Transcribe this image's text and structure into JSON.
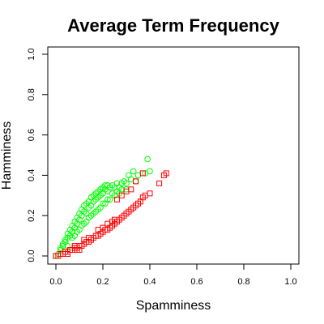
{
  "chart_data": {
    "type": "scatter",
    "title": "Average Term Frequency",
    "xlabel": "Spamminess",
    "ylabel": "Hamminess",
    "xlim": [
      0,
      1
    ],
    "ylim": [
      0,
      1
    ],
    "x_ticks": [
      "0.0",
      "0.2",
      "0.4",
      "0.6",
      "0.8",
      "1.0"
    ],
    "y_ticks": [
      "0.0",
      "0.2",
      "0.4",
      "0.6",
      "0.8",
      "1.0"
    ],
    "grid": false,
    "legend": "none",
    "series": [
      {
        "marker": "circle",
        "color": "#00ff00",
        "points": [
          [
            0.0,
            0.0
          ],
          [
            0.01,
            0.01
          ],
          [
            0.02,
            0.03
          ],
          [
            0.02,
            0.04
          ],
          [
            0.03,
            0.05
          ],
          [
            0.03,
            0.06
          ],
          [
            0.04,
            0.07
          ],
          [
            0.04,
            0.08
          ],
          [
            0.05,
            0.09
          ],
          [
            0.05,
            0.11
          ],
          [
            0.06,
            0.1
          ],
          [
            0.06,
            0.13
          ],
          [
            0.07,
            0.12
          ],
          [
            0.07,
            0.15
          ],
          [
            0.08,
            0.14
          ],
          [
            0.08,
            0.17
          ],
          [
            0.09,
            0.16
          ],
          [
            0.09,
            0.19
          ],
          [
            0.1,
            0.18
          ],
          [
            0.1,
            0.21
          ],
          [
            0.11,
            0.2
          ],
          [
            0.11,
            0.23
          ],
          [
            0.12,
            0.22
          ],
          [
            0.12,
            0.25
          ],
          [
            0.13,
            0.21
          ],
          [
            0.13,
            0.26
          ],
          [
            0.14,
            0.24
          ],
          [
            0.14,
            0.27
          ],
          [
            0.15,
            0.25
          ],
          [
            0.15,
            0.29
          ],
          [
            0.16,
            0.27
          ],
          [
            0.16,
            0.3
          ],
          [
            0.17,
            0.28
          ],
          [
            0.17,
            0.31
          ],
          [
            0.18,
            0.29
          ],
          [
            0.18,
            0.32
          ],
          [
            0.19,
            0.3
          ],
          [
            0.19,
            0.33
          ],
          [
            0.2,
            0.31
          ],
          [
            0.2,
            0.34
          ],
          [
            0.21,
            0.33
          ],
          [
            0.21,
            0.35
          ],
          [
            0.22,
            0.32
          ],
          [
            0.22,
            0.35
          ],
          [
            0.23,
            0.34
          ],
          [
            0.24,
            0.35
          ],
          [
            0.25,
            0.34
          ],
          [
            0.26,
            0.36
          ],
          [
            0.27,
            0.34
          ],
          [
            0.28,
            0.36
          ],
          [
            0.29,
            0.37
          ],
          [
            0.3,
            0.36
          ],
          [
            0.31,
            0.4
          ],
          [
            0.32,
            0.38
          ],
          [
            0.33,
            0.42
          ],
          [
            0.34,
            0.37
          ],
          [
            0.35,
            0.4
          ],
          [
            0.38,
            0.41
          ],
          [
            0.39,
            0.48
          ],
          [
            0.4,
            0.42
          ],
          [
            0.05,
            0.05
          ],
          [
            0.07,
            0.09
          ],
          [
            0.09,
            0.12
          ],
          [
            0.11,
            0.15
          ],
          [
            0.13,
            0.17
          ],
          [
            0.15,
            0.2
          ],
          [
            0.17,
            0.22
          ],
          [
            0.19,
            0.24
          ],
          [
            0.21,
            0.26
          ],
          [
            0.23,
            0.28
          ],
          [
            0.25,
            0.3
          ],
          [
            0.27,
            0.31
          ],
          [
            0.08,
            0.1
          ],
          [
            0.1,
            0.13
          ],
          [
            0.12,
            0.16
          ],
          [
            0.14,
            0.19
          ],
          [
            0.16,
            0.21
          ],
          [
            0.18,
            0.23
          ],
          [
            0.2,
            0.26
          ],
          [
            0.22,
            0.28
          ],
          [
            0.24,
            0.31
          ],
          [
            0.26,
            0.32
          ],
          [
            0.28,
            0.33
          ],
          [
            0.3,
            0.33
          ]
        ]
      },
      {
        "marker": "square",
        "color": "#ff0000",
        "points": [
          [
            0.0,
            0.0
          ],
          [
            0.01,
            0.0
          ],
          [
            0.02,
            0.01
          ],
          [
            0.03,
            0.01
          ],
          [
            0.04,
            0.02
          ],
          [
            0.05,
            0.02
          ],
          [
            0.06,
            0.03
          ],
          [
            0.07,
            0.03
          ],
          [
            0.08,
            0.04
          ],
          [
            0.09,
            0.04
          ],
          [
            0.1,
            0.05
          ],
          [
            0.11,
            0.05
          ],
          [
            0.12,
            0.06
          ],
          [
            0.13,
            0.07
          ],
          [
            0.14,
            0.07
          ],
          [
            0.15,
            0.08
          ],
          [
            0.16,
            0.09
          ],
          [
            0.17,
            0.1
          ],
          [
            0.18,
            0.1
          ],
          [
            0.19,
            0.11
          ],
          [
            0.2,
            0.12
          ],
          [
            0.21,
            0.13
          ],
          [
            0.22,
            0.13
          ],
          [
            0.23,
            0.14
          ],
          [
            0.24,
            0.15
          ],
          [
            0.25,
            0.16
          ],
          [
            0.26,
            0.17
          ],
          [
            0.27,
            0.18
          ],
          [
            0.28,
            0.19
          ],
          [
            0.29,
            0.2
          ],
          [
            0.3,
            0.21
          ],
          [
            0.31,
            0.22
          ],
          [
            0.32,
            0.23
          ],
          [
            0.33,
            0.24
          ],
          [
            0.34,
            0.25
          ],
          [
            0.35,
            0.26
          ],
          [
            0.36,
            0.27
          ],
          [
            0.37,
            0.29
          ],
          [
            0.38,
            0.3
          ],
          [
            0.4,
            0.31
          ],
          [
            0.44,
            0.36
          ],
          [
            0.46,
            0.4
          ],
          [
            0.47,
            0.41
          ],
          [
            0.3,
            0.32
          ],
          [
            0.32,
            0.33
          ],
          [
            0.34,
            0.37
          ],
          [
            0.37,
            0.41
          ],
          [
            0.26,
            0.28
          ],
          [
            0.28,
            0.3
          ],
          [
            0.12,
            0.08
          ],
          [
            0.08,
            0.05
          ],
          [
            0.18,
            0.13
          ],
          [
            0.22,
            0.16
          ],
          [
            0.25,
            0.18
          ],
          [
            0.05,
            0.01
          ],
          [
            0.09,
            0.03
          ],
          [
            0.14,
            0.09
          ],
          [
            0.2,
            0.14
          ],
          [
            0.24,
            0.17
          ],
          [
            0.1,
            0.03
          ]
        ]
      }
    ]
  }
}
